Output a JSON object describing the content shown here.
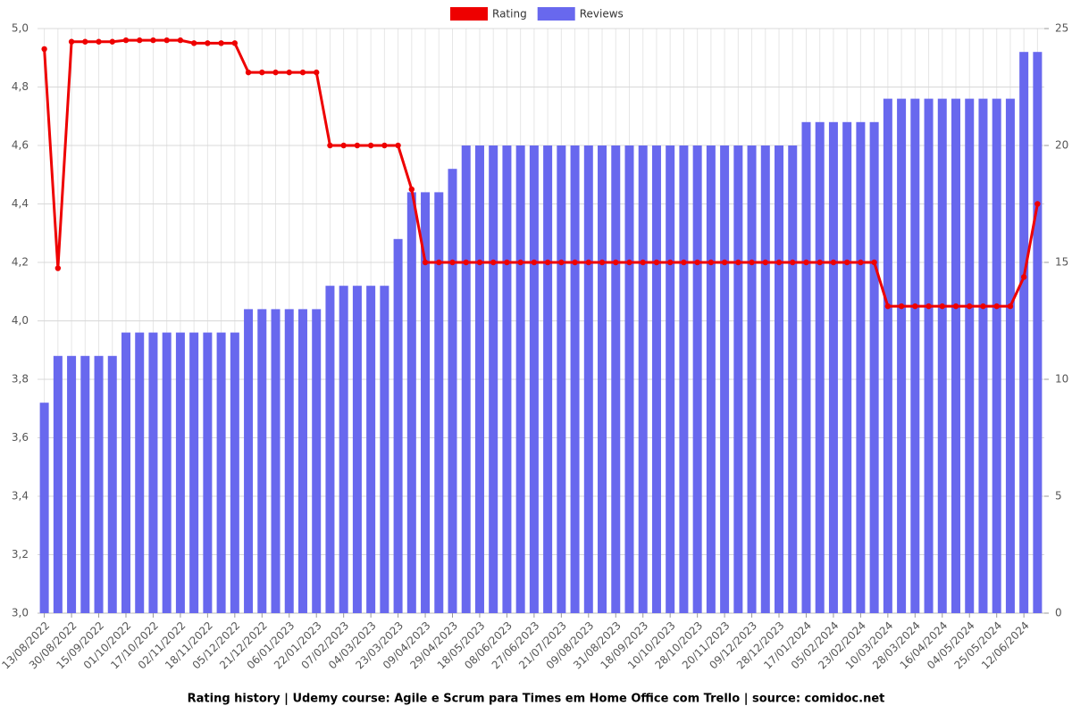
{
  "chart_data": {
    "type": "bar",
    "title": "Rating history | Udemy course: Agile e Scrum para Times em Home Office com Trello | source: comidoc.net",
    "categories": [
      "13/08/2022",
      null,
      "30/08/2022",
      null,
      "15/09/2022",
      null,
      "01/10/2022",
      null,
      "17/10/2022",
      null,
      "02/11/2022",
      null,
      "18/11/2022",
      null,
      "05/12/2022",
      null,
      "21/12/2022",
      null,
      "06/01/2023",
      null,
      "22/01/2023",
      null,
      "07/02/2023",
      null,
      "04/03/2023",
      null,
      "23/03/2023",
      null,
      "09/04/2023",
      null,
      "29/04/2023",
      null,
      "18/05/2023",
      null,
      "08/06/2023",
      null,
      "27/06/2023",
      null,
      "21/07/2023",
      null,
      "09/08/2023",
      null,
      "31/08/2023",
      null,
      "18/09/2023",
      null,
      "10/10/2023",
      null,
      "28/10/2023",
      null,
      "20/11/2023",
      null,
      "09/12/2023",
      null,
      "28/12/2023",
      null,
      "17/01/2024",
      null,
      "05/02/2024",
      null,
      "23/02/2024",
      null,
      "10/03/2024",
      null,
      "28/03/2024",
      null,
      "16/04/2024",
      null,
      "04/05/2024",
      null,
      "25/05/2024",
      null,
      "12/06/2024",
      null
    ],
    "series": [
      {
        "name": "Rating",
        "type": "line",
        "color": "#ee0000",
        "axis": "y",
        "values": [
          4.93,
          4.18,
          4.955,
          4.955,
          4.955,
          4.955,
          4.96,
          4.96,
          4.96,
          4.96,
          4.96,
          4.95,
          4.95,
          4.95,
          4.95,
          4.85,
          4.85,
          4.85,
          4.85,
          4.85,
          4.85,
          4.6,
          4.6,
          4.6,
          4.6,
          4.6,
          4.6,
          4.45,
          4.2,
          4.2,
          4.2,
          4.2,
          4.2,
          4.2,
          4.2,
          4.2,
          4.2,
          4.2,
          4.2,
          4.2,
          4.2,
          4.2,
          4.2,
          4.2,
          4.2,
          4.2,
          4.2,
          4.2,
          4.2,
          4.2,
          4.2,
          4.2,
          4.2,
          4.2,
          4.2,
          4.2,
          4.2,
          4.2,
          4.2,
          4.2,
          4.2,
          4.2,
          4.05,
          4.05,
          4.05,
          4.05,
          4.05,
          4.05,
          4.05,
          4.05,
          4.05,
          4.05,
          4.15,
          4.4
        ]
      },
      {
        "name": "Reviews",
        "type": "bar",
        "color": "#6868ee",
        "axis": "y2",
        "values": [
          9,
          11,
          11,
          11,
          11,
          11,
          12,
          12,
          12,
          12,
          12,
          12,
          12,
          12,
          12,
          13,
          13,
          13,
          13,
          13,
          13,
          14,
          14,
          14,
          14,
          14,
          16,
          18,
          18,
          18,
          19,
          20,
          20,
          20,
          20,
          20,
          20,
          20,
          20,
          20,
          20,
          20,
          20,
          20,
          20,
          20,
          20,
          20,
          20,
          20,
          20,
          20,
          20,
          20,
          20,
          20,
          21,
          21,
          21,
          21,
          21,
          21,
          22,
          22,
          22,
          22,
          22,
          22,
          22,
          22,
          22,
          22,
          24,
          24
        ]
      }
    ],
    "ylim": [
      3,
      5
    ],
    "yticks": [
      {
        "value": 3,
        "label": "3,0"
      },
      {
        "value": 3.2,
        "label": "3,2"
      },
      {
        "value": 3.4,
        "label": "3,4"
      },
      {
        "value": 3.6,
        "label": "3,6"
      },
      {
        "value": 3.8,
        "label": "3,8"
      },
      {
        "value": 4,
        "label": "4,0"
      },
      {
        "value": 4.2,
        "label": "4,2"
      },
      {
        "value": 4.4,
        "label": "4,4"
      },
      {
        "value": 4.6,
        "label": "4,6"
      },
      {
        "value": 4.8,
        "label": "4,8"
      },
      {
        "value": 5,
        "label": "5,0"
      }
    ],
    "y2lim": [
      0,
      25
    ],
    "y2ticks": [
      0,
      5,
      10,
      15,
      20,
      25
    ],
    "grid": true,
    "legend": "top"
  }
}
